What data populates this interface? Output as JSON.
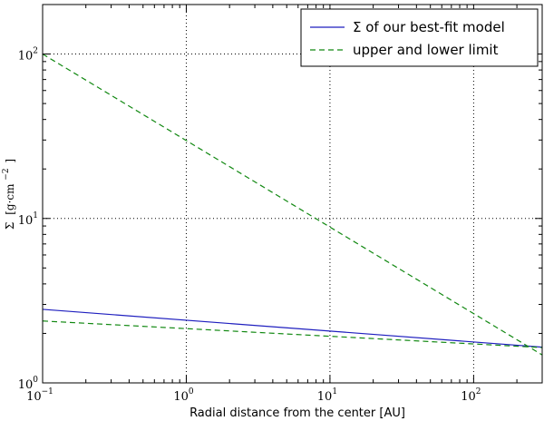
{
  "chart_data": {
    "type": "line",
    "title": "",
    "xlabel": "Radial distance from the center [AU]",
    "ylabel": {
      "symbol": "Σ",
      "prefix": "[g·cm",
      "exponent": "−2",
      "suffix": "]"
    },
    "xscale": "log",
    "yscale": "log",
    "xlim": [
      0.1,
      300
    ],
    "ylim": [
      1,
      200
    ],
    "xticks": [
      {
        "value": 0.1,
        "base": "10",
        "exp": "−1"
      },
      {
        "value": 1,
        "base": "10",
        "exp": "0"
      },
      {
        "value": 10,
        "base": "10",
        "exp": "1"
      },
      {
        "value": 100,
        "base": "10",
        "exp": "2"
      }
    ],
    "yticks": [
      {
        "value": 1,
        "base": "10",
        "exp": "0"
      },
      {
        "value": 10,
        "base": "10",
        "exp": "1"
      },
      {
        "value": 100,
        "base": "10",
        "exp": "2"
      }
    ],
    "grid": true,
    "legend": "top-right",
    "series": [
      {
        "name": "Σ of our best-fit model",
        "style": "solid",
        "color": "#1f1fbf",
        "x": [
          0.1,
          300
        ],
        "y": [
          2.8,
          1.65
        ]
      },
      {
        "name": "upper and lower limit",
        "style": "dashed",
        "color": "#118811",
        "x": [
          0.1,
          300
        ],
        "y": [
          100,
          1.48
        ]
      },
      {
        "name": "",
        "style": "dashed",
        "color": "#118811",
        "x": [
          0.1,
          300
        ],
        "y": [
          2.38,
          1.64
        ]
      }
    ]
  }
}
